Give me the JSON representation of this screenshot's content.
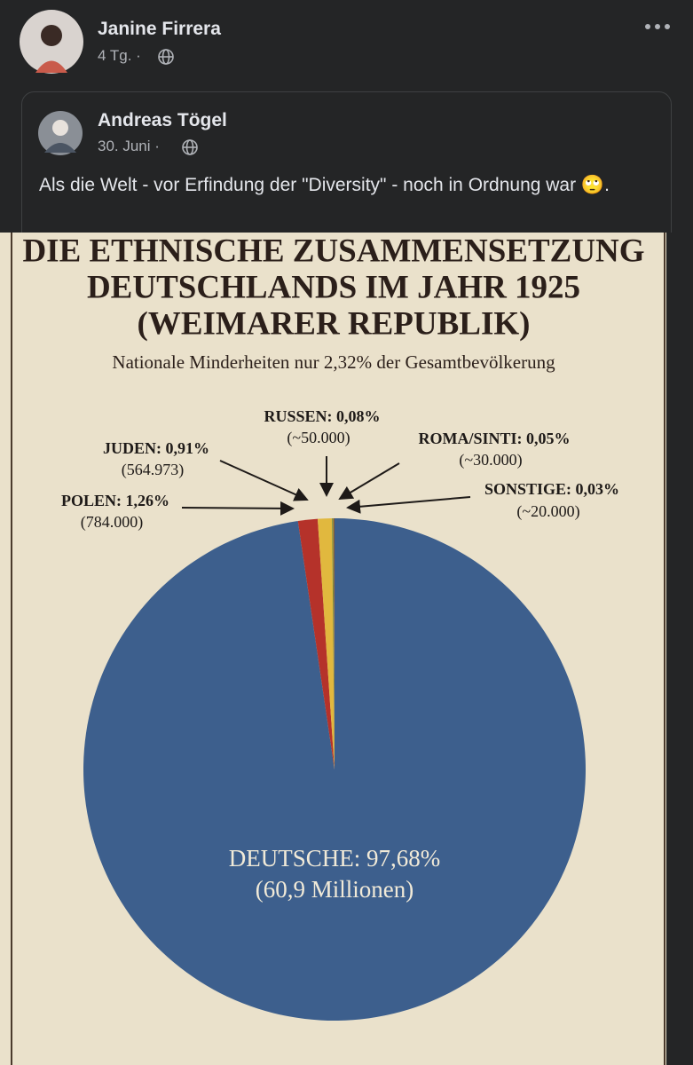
{
  "post": {
    "author": "Janine Firrera",
    "time": "4 Tg."
  },
  "shared": {
    "author": "Andreas Tögel",
    "date": "30. Juni",
    "text": "Als die Welt - vor Erfindung der \"Diversity\" - noch in Ordnung war 🙄."
  },
  "chart_data": {
    "type": "pie",
    "title": [
      "DIE ETHNISCHE ZUSAMMENSETZUNG",
      "DEUTSCHLANDS IM JAHR 1925",
      "(WEIMARER REPUBLIK)"
    ],
    "subtitle": "Nationale Minderheiten nur 2,32% der Gesamtbevölkerung",
    "values": [
      97.68,
      1.26,
      0.91,
      0.08,
      0.05,
      0.03
    ],
    "value_labels": [
      "DEUTSCHE: 97,68%",
      "POLEN: 1,26%",
      "JUDEN: 0,91%",
      "RUSSEN: 0,08%",
      "ROMA/SINTI: 0,05%",
      "SONSTIGE: 0,03%"
    ],
    "sublabels": [
      "(60,9 Millionen)",
      "(784.000)",
      "(564.973)",
      "(~50.000)",
      "(~30.000)",
      "(~20.000)"
    ],
    "colors": [
      "#3d5f8d",
      "#b5322a",
      "#e1b83e",
      "#6f8a3b",
      "#d27a2c",
      "#3a3a3a"
    ]
  }
}
